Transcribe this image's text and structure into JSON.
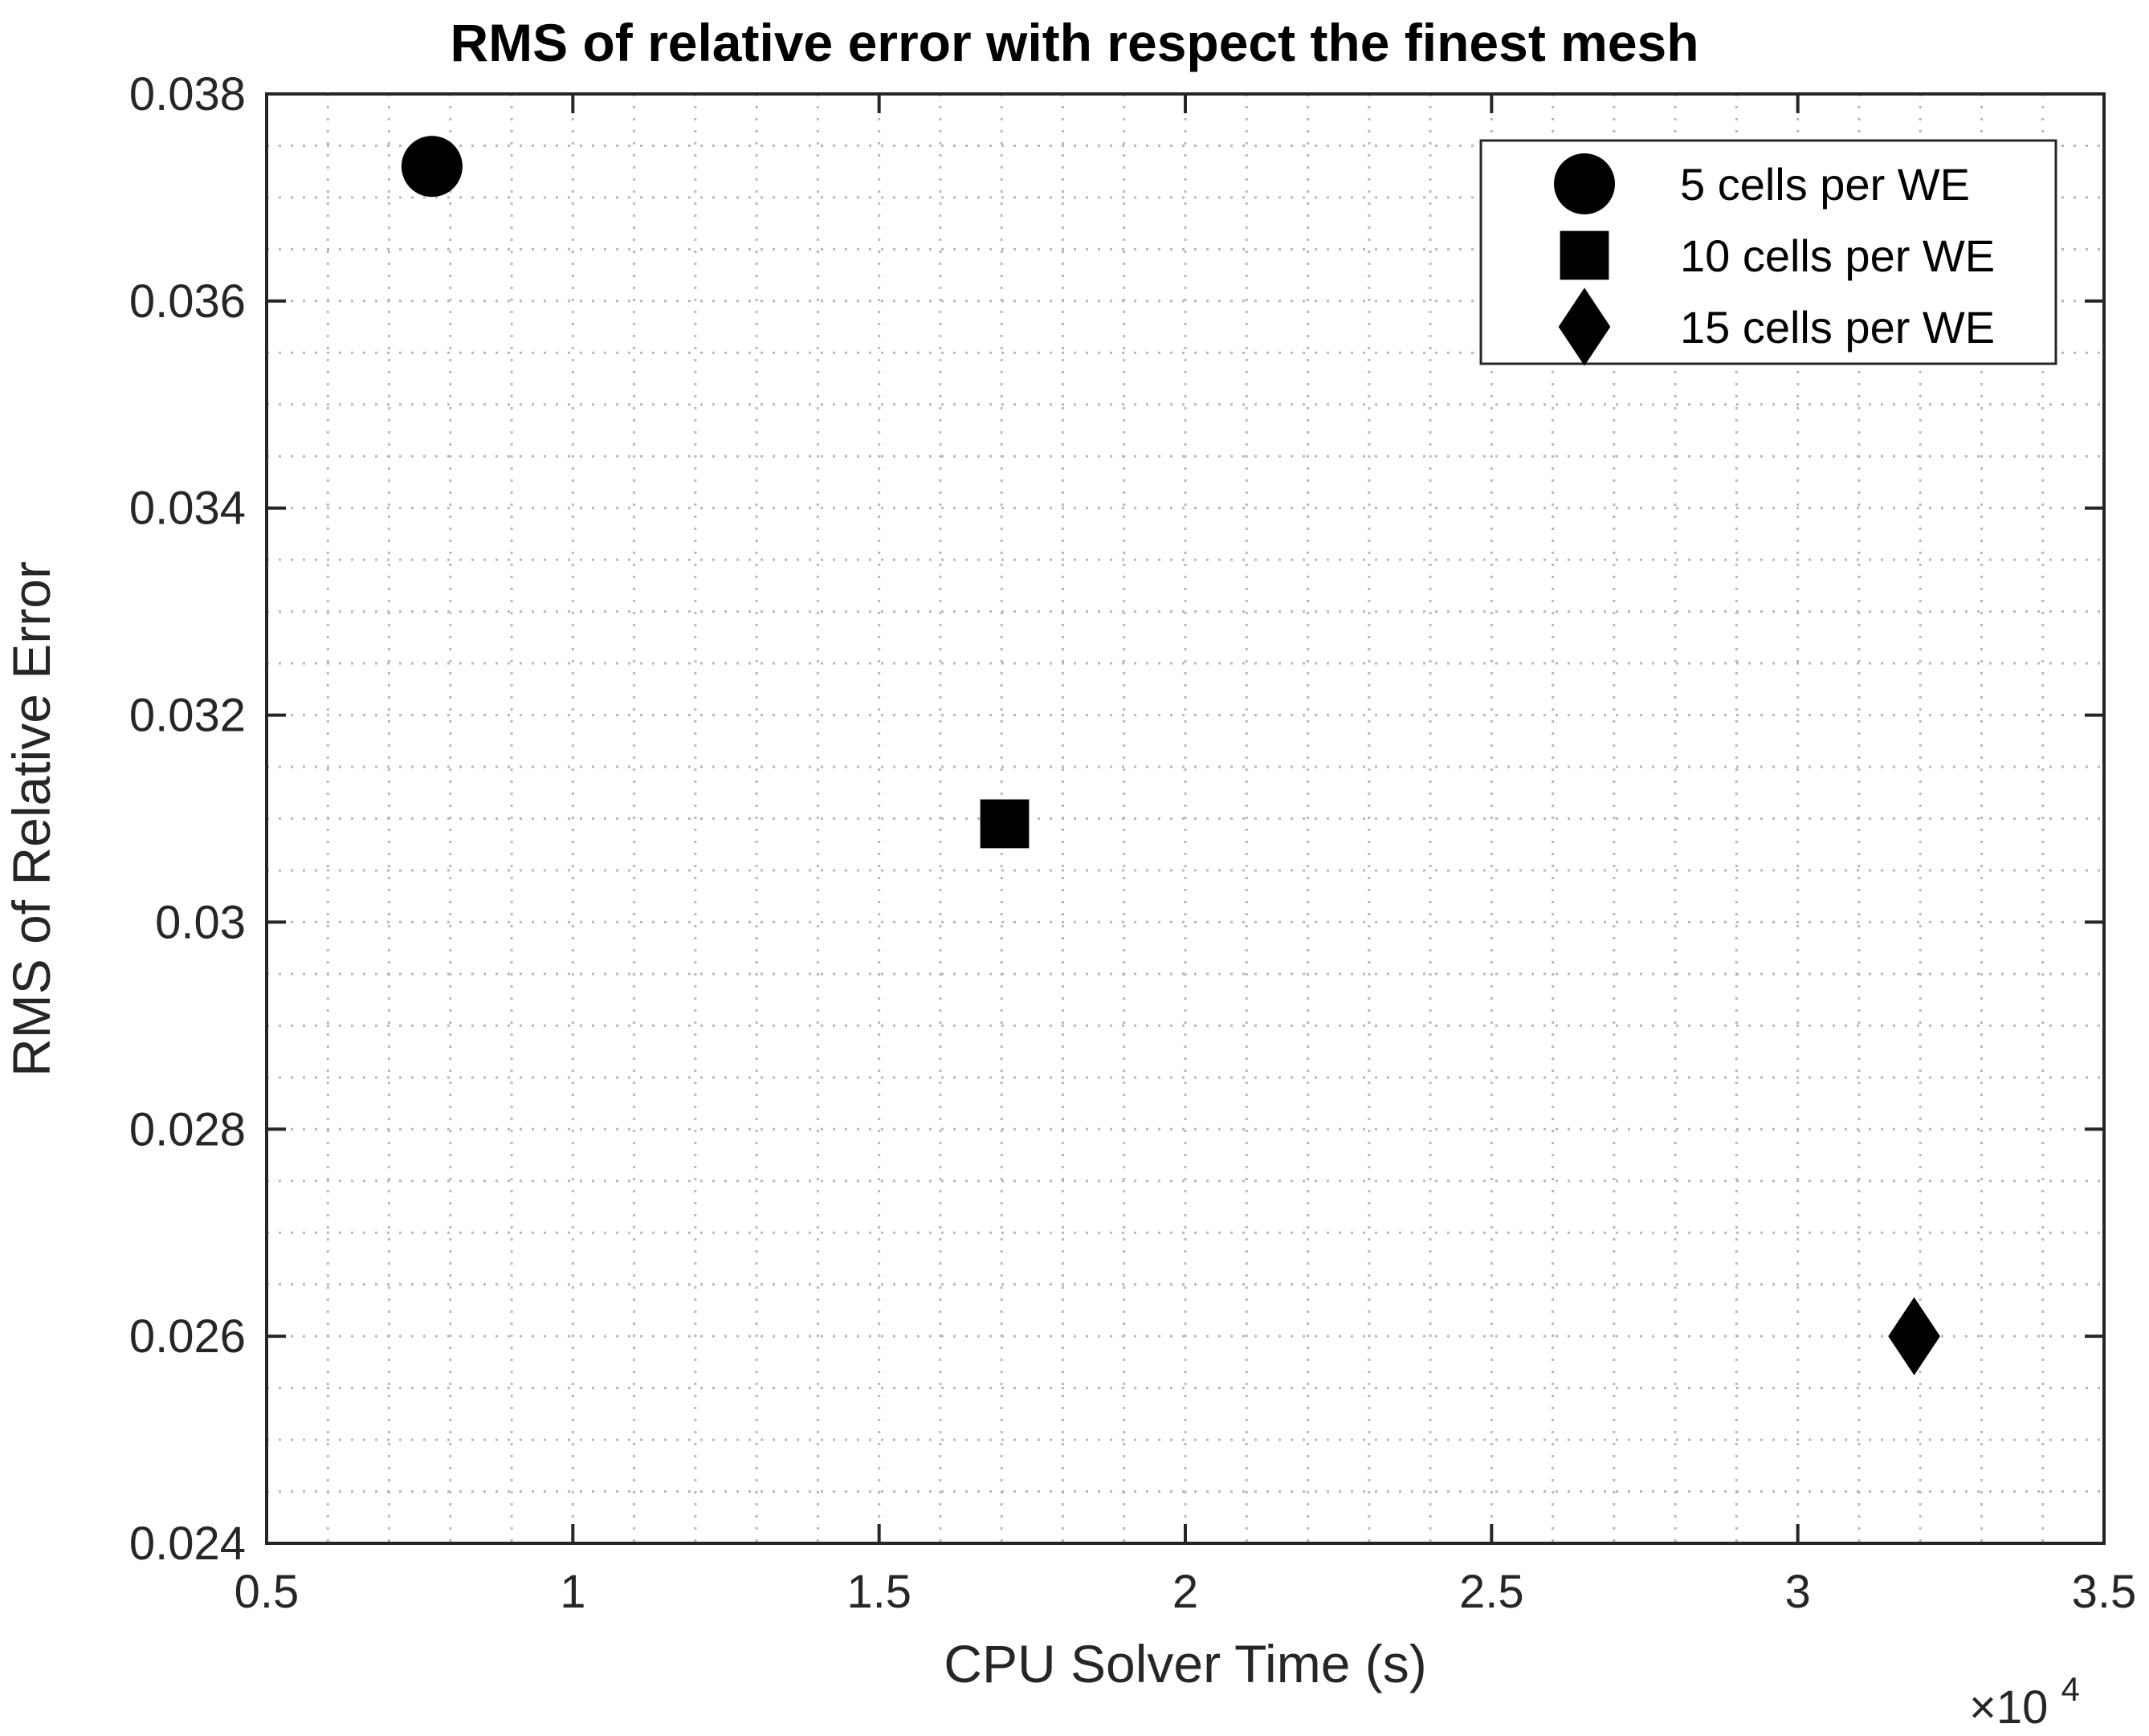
{
  "chart_data": {
    "type": "scatter",
    "title": "RMS of relative error with respect the finest mesh",
    "xlabel": "CPU Solver Time (s)",
    "ylabel": "RMS of Relative Error",
    "x_exponent_base": "×10",
    "x_exponent_power": "4",
    "xlim": [
      0.5,
      3.5
    ],
    "ylim": [
      0.024,
      0.038
    ],
    "xticks": [
      0.5,
      1,
      1.5,
      2,
      2.5,
      3,
      3.5
    ],
    "xtick_labels": [
      "0.5",
      "1",
      "1.5",
      "2",
      "2.5",
      "3",
      "3.5"
    ],
    "yticks": [
      0.024,
      0.026,
      0.028,
      0.03,
      0.032,
      0.034,
      0.036,
      0.038
    ],
    "ytick_labels": [
      "0.024",
      "0.026",
      "0.028",
      "0.03",
      "0.032",
      "0.034",
      "0.036",
      "0.038"
    ],
    "x_minor_step": 0.1,
    "y_minor_step": 0.0005,
    "grid": true,
    "legend_position": "top-right",
    "series": [
      {
        "name": "5 cells per WE",
        "marker": "circle",
        "color": "#000000",
        "x": [
          0.77
        ],
        "y": [
          0.0373
        ]
      },
      {
        "name": "10 cells per WE",
        "marker": "square",
        "color": "#000000",
        "x": [
          1.705
        ],
        "y": [
          0.03095
        ]
      },
      {
        "name": "15 cells per WE",
        "marker": "diamond",
        "color": "#000000",
        "x": [
          3.19
        ],
        "y": [
          0.026
        ]
      }
    ]
  }
}
